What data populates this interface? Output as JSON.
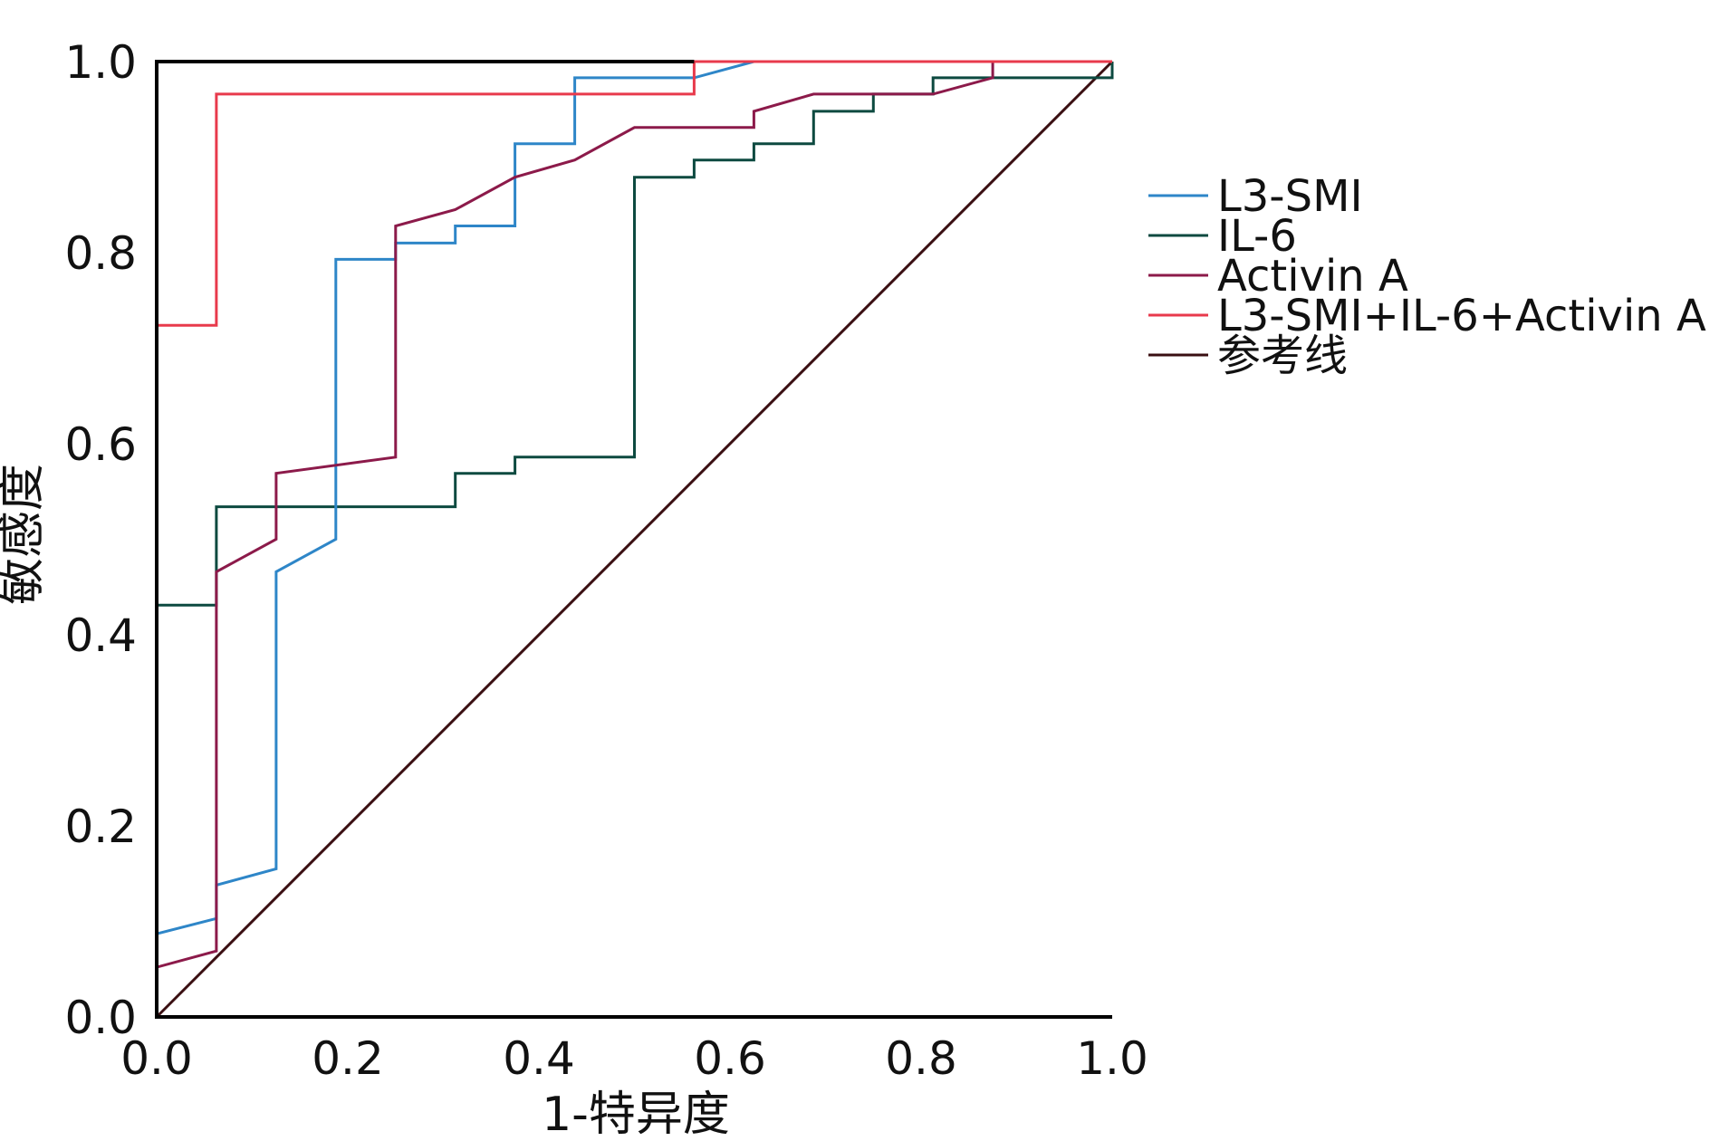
{
  "chart_data": {
    "type": "line",
    "subtype": "roc-step",
    "title": "",
    "xlabel": "1-特异度",
    "ylabel": "敏感度",
    "xlim": [
      0,
      1
    ],
    "ylim": [
      0,
      1
    ],
    "x_ticks": [
      "0.0",
      "0.2",
      "0.4",
      "0.6",
      "0.8",
      "1.0"
    ],
    "y_ticks": [
      "0.0",
      "0.2",
      "0.4",
      "0.6",
      "0.8",
      "1.0"
    ],
    "grid": false,
    "legend_position": "right",
    "series": [
      {
        "name": "L3-SMI",
        "color": "#2e86c8",
        "points": [
          [
            0,
            0
          ],
          [
            0,
            0.087
          ],
          [
            0.0625,
            0.103
          ],
          [
            0.0625,
            0.138
          ],
          [
            0.125,
            0.155
          ],
          [
            0.125,
            0.466
          ],
          [
            0.1875,
            0.5
          ],
          [
            0.1875,
            0.793
          ],
          [
            0.25,
            0.793
          ],
          [
            0.25,
            0.81
          ],
          [
            0.3125,
            0.81
          ],
          [
            0.3125,
            0.828
          ],
          [
            0.375,
            0.828
          ],
          [
            0.375,
            0.914
          ],
          [
            0.4375,
            0.914
          ],
          [
            0.4375,
            0.983
          ],
          [
            0.5625,
            0.983
          ],
          [
            0.625,
            1
          ],
          [
            1,
            1
          ]
        ]
      },
      {
        "name": "IL-6",
        "color": "#0d4a40",
        "points": [
          [
            0,
            0
          ],
          [
            0,
            0.431
          ],
          [
            0.0625,
            0.431
          ],
          [
            0.0625,
            0.534
          ],
          [
            0.3125,
            0.534
          ],
          [
            0.3125,
            0.569
          ],
          [
            0.375,
            0.569
          ],
          [
            0.375,
            0.586
          ],
          [
            0.5,
            0.586
          ],
          [
            0.5,
            0.879
          ],
          [
            0.5625,
            0.879
          ],
          [
            0.5625,
            0.897
          ],
          [
            0.625,
            0.897
          ],
          [
            0.625,
            0.914
          ],
          [
            0.6875,
            0.914
          ],
          [
            0.6875,
            0.948
          ],
          [
            0.75,
            0.948
          ],
          [
            0.75,
            0.966
          ],
          [
            0.8125,
            0.966
          ],
          [
            0.8125,
            0.983
          ],
          [
            1,
            0.983
          ],
          [
            1,
            1
          ]
        ]
      },
      {
        "name": "Activin A",
        "color": "#8c1a4a",
        "points": [
          [
            0,
            0
          ],
          [
            0,
            0.052
          ],
          [
            0.0625,
            0.069
          ],
          [
            0.0625,
            0.466
          ],
          [
            0.125,
            0.5
          ],
          [
            0.125,
            0.569
          ],
          [
            0.25,
            0.586
          ],
          [
            0.25,
            0.828
          ],
          [
            0.3125,
            0.845
          ],
          [
            0.375,
            0.879
          ],
          [
            0.4375,
            0.897
          ],
          [
            0.5,
            0.931
          ],
          [
            0.625,
            0.931
          ],
          [
            0.625,
            0.948
          ],
          [
            0.6875,
            0.966
          ],
          [
            0.8125,
            0.966
          ],
          [
            0.875,
            0.983
          ],
          [
            0.875,
            1
          ],
          [
            1,
            1
          ]
        ]
      },
      {
        "name": "L3-SMI+IL-6+Activin A",
        "color": "#e83a4c",
        "points": [
          [
            0,
            0
          ],
          [
            0,
            0.724
          ],
          [
            0.0625,
            0.724
          ],
          [
            0.0625,
            0.966
          ],
          [
            0.5625,
            0.966
          ],
          [
            0.5625,
            1
          ],
          [
            1,
            1
          ]
        ]
      },
      {
        "name": "参考线",
        "color": "#3a0f12",
        "points": [
          [
            0,
            0
          ],
          [
            1,
            1
          ]
        ]
      }
    ],
    "overlay_frame": {
      "name": "perfect-classifier",
      "color": "#000000",
      "points": [
        [
          0,
          0.724
        ],
        [
          0,
          1
        ],
        [
          0.5625,
          1
        ]
      ]
    }
  }
}
